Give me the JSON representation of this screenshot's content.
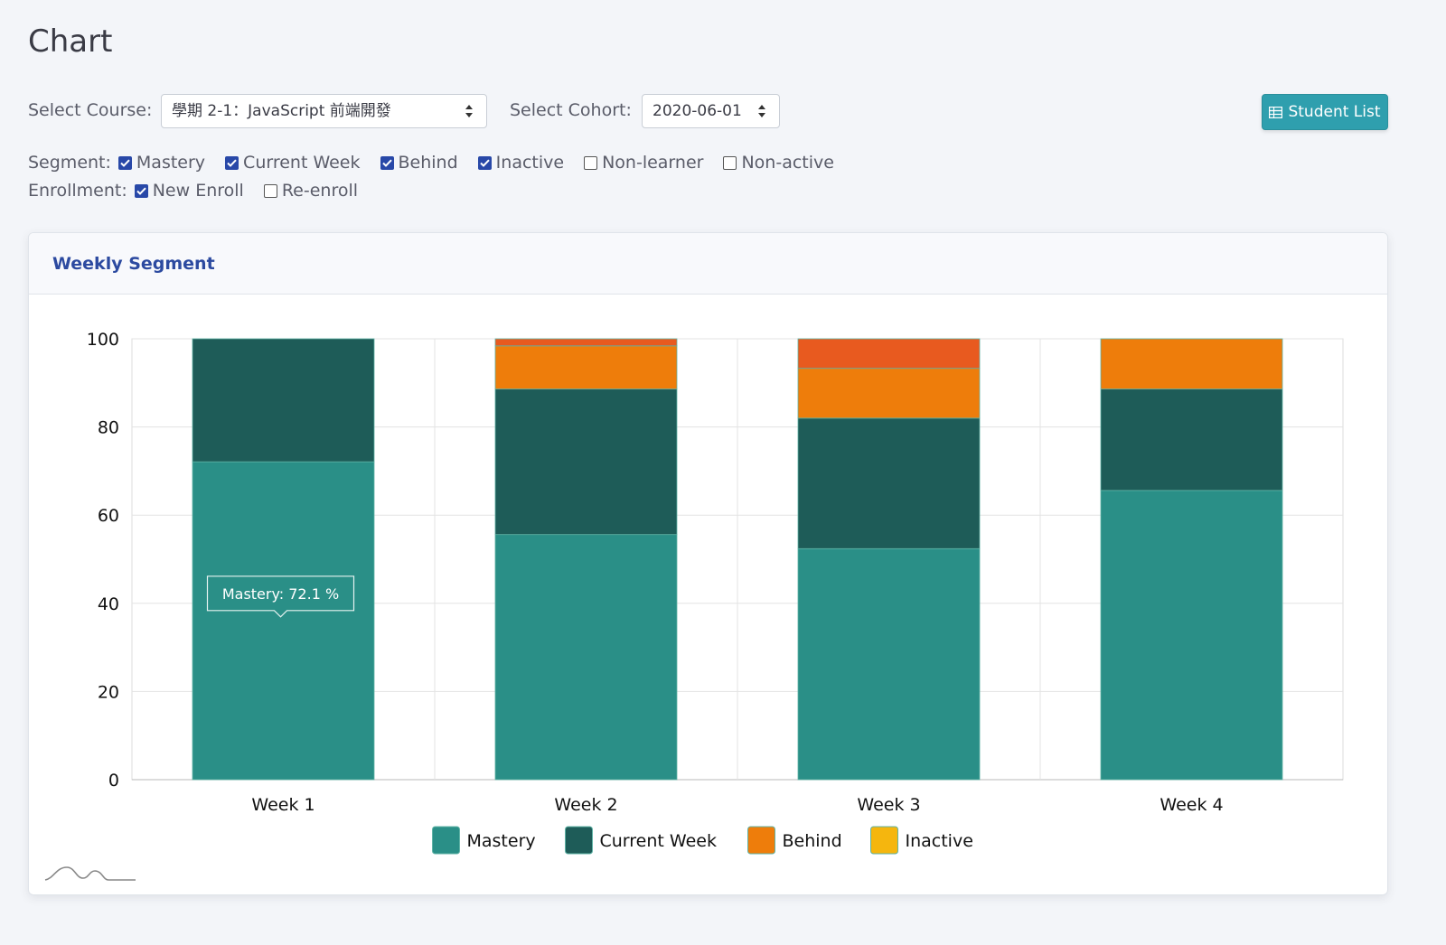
{
  "page": {
    "title": "Chart"
  },
  "filters": {
    "course_label": "Select Course:",
    "course_value": "學期 2-1：JavaScript 前端開發",
    "cohort_label": "Select Cohort:",
    "cohort_value": "2020-06-01",
    "student_list_label": "Student List",
    "segment_label": "Segment:",
    "segments": [
      {
        "label": "Mastery",
        "checked": true
      },
      {
        "label": "Current Week",
        "checked": true
      },
      {
        "label": "Behind",
        "checked": true
      },
      {
        "label": "Inactive",
        "checked": true
      },
      {
        "label": "Non-learner",
        "checked": false
      },
      {
        "label": "Non-active",
        "checked": false
      }
    ],
    "enrollment_label": "Enrollment:",
    "enrollments": [
      {
        "label": "New Enroll",
        "checked": true
      },
      {
        "label": "Re-enroll",
        "checked": false
      }
    ]
  },
  "card": {
    "title": "Weekly Segment"
  },
  "chart_data": {
    "type": "bar",
    "stacked": true,
    "categories": [
      "Week 1",
      "Week 2",
      "Week 3",
      "Week 4"
    ],
    "ylim": [
      0,
      100
    ],
    "yticks": [
      0,
      20,
      40,
      60,
      80,
      100
    ],
    "grid": true,
    "legend": "bottom",
    "series": [
      {
        "name": "Mastery",
        "color": "#2a8f87",
        "values": [
          72.1,
          55.6,
          52.4,
          65.6
        ]
      },
      {
        "name": "Current Week",
        "color": "#1e5c58",
        "values": [
          27.9,
          33.0,
          29.6,
          23.0
        ]
      },
      {
        "name": "Behind",
        "color": "#ee7d0b",
        "values": [
          0,
          9.8,
          11.3,
          11.4
        ]
      },
      {
        "name": "Inactive",
        "color": "#f5b60e",
        "values": [
          0,
          0,
          0,
          0
        ]
      },
      {
        "name": "",
        "color": "#e85a1f",
        "values": [
          0,
          1.6,
          6.7,
          0
        ]
      }
    ],
    "tooltip": {
      "text": "Mastery: 72.1 %",
      "category": "Week 1"
    }
  },
  "colors": {
    "accent": "#2f9fae",
    "title_blue": "#2c4aa0",
    "checkbox_checked": "#2848a8"
  }
}
